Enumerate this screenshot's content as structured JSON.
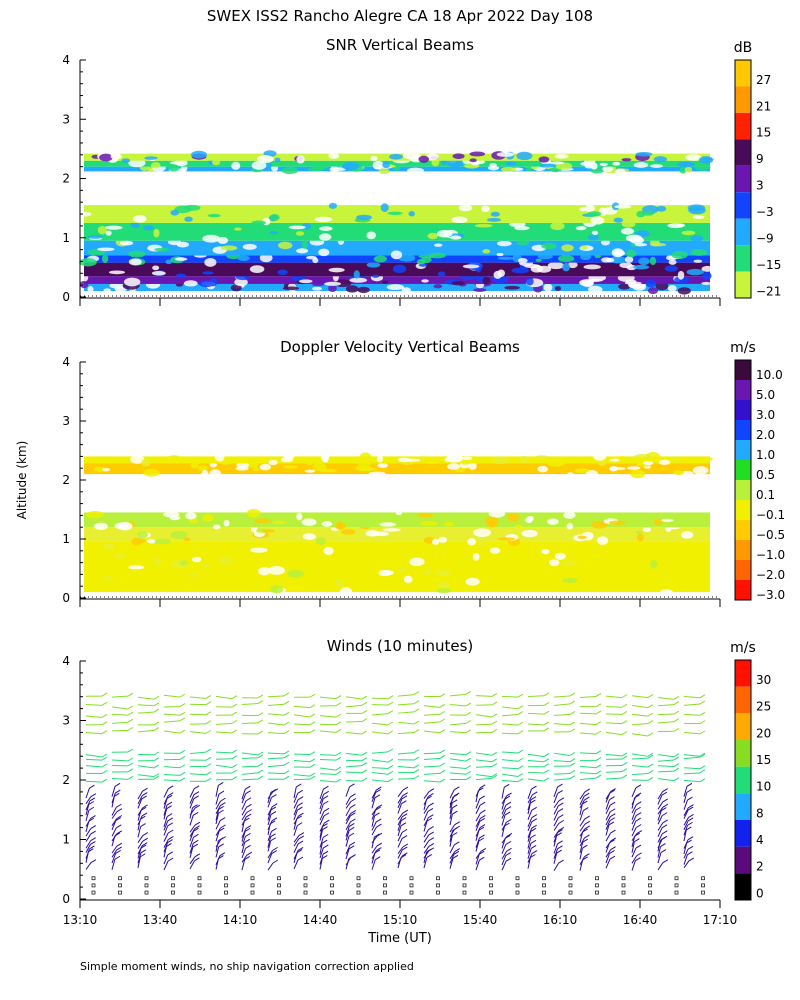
{
  "figure": {
    "title": "SWEX ISS2 Rancho Alegre CA  18 Apr 2022 Day 108",
    "ylabel": "Altitude (km)",
    "xlabel": "Time (UT)",
    "footnote": "Simple moment winds, no ship navigation correction applied",
    "x_ticks": [
      "13:10",
      "13:40",
      "14:10",
      "14:40",
      "15:10",
      "15:40",
      "16:10",
      "16:40",
      "17:10"
    ]
  },
  "chart_data": [
    {
      "type": "heatmap",
      "title": "SNR Vertical Beams",
      "ylim": [
        0,
        4
      ],
      "y_ticks": [
        "0",
        "1",
        "2",
        "3",
        "4"
      ],
      "colorbar_unit": "dB",
      "colorbar_labels": [
        "27",
        "21",
        "15",
        "9",
        "3",
        "−3",
        "−9",
        "−15",
        "−21"
      ],
      "colorbar_colors": [
        "#ffc800",
        "#ff9900",
        "#ff2200",
        "#4a0a5a",
        "#6a16b0",
        "#1144ff",
        "#22aaff",
        "#22dd77",
        "#c8f53c"
      ],
      "bands": [
        {
          "y0": 0.1,
          "y1": 0.22,
          "color": "#22aaff"
        },
        {
          "y0": 0.22,
          "y1": 0.35,
          "color": "#6a16b0"
        },
        {
          "y0": 0.35,
          "y1": 0.58,
          "color": "#4a0a5a"
        },
        {
          "y0": 0.58,
          "y1": 0.7,
          "color": "#1144ff"
        },
        {
          "y0": 0.7,
          "y1": 0.95,
          "color": "#22aaff"
        },
        {
          "y0": 0.95,
          "y1": 1.25,
          "color": "#22dd77"
        },
        {
          "y0": 1.25,
          "y1": 1.55,
          "color": "#c8f53c"
        },
        {
          "y0": 2.12,
          "y1": 2.2,
          "color": "#22aaff"
        },
        {
          "y0": 2.2,
          "y1": 2.3,
          "color": "#22dd77"
        },
        {
          "y0": 2.3,
          "y1": 2.42,
          "color": "#c8f53c"
        }
      ]
    },
    {
      "type": "heatmap",
      "title": "Doppler Velocity Vertical Beams",
      "ylim": [
        0,
        4
      ],
      "y_ticks": [
        "0",
        "1",
        "2",
        "3",
        "4"
      ],
      "colorbar_unit": "m/s",
      "colorbar_labels": [
        "10.0",
        "5.0",
        "3.0",
        "2.0",
        "1.0",
        "0.5",
        "0.1",
        "−0.1",
        "−0.5",
        "−1.0",
        "−2.0",
        "−3.0"
      ],
      "colorbar_colors": [
        "#3a0a3a",
        "#6a16b0",
        "#3311cc",
        "#1144ff",
        "#22aaff",
        "#22dd22",
        "#b8f03c",
        "#f0f000",
        "#ffcc00",
        "#ff9900",
        "#ff6600",
        "#ff1100"
      ],
      "bands": [
        {
          "y0": 0.1,
          "y1": 0.95,
          "color": "#f0f000"
        },
        {
          "y0": 0.95,
          "y1": 1.2,
          "color": "#e8ee30"
        },
        {
          "y0": 1.2,
          "y1": 1.45,
          "color": "#b8f03c"
        },
        {
          "y0": 2.1,
          "y1": 2.28,
          "color": "#ffcc00"
        },
        {
          "y0": 2.28,
          "y1": 2.4,
          "color": "#f0f000"
        }
      ]
    },
    {
      "type": "scatter",
      "title": "Winds (10 minutes)",
      "ylim": [
        0,
        4
      ],
      "y_ticks": [
        "0",
        "1",
        "2",
        "3",
        "4"
      ],
      "colorbar_unit": "m/s",
      "colorbar_labels": [
        "30",
        "25",
        "20",
        "15",
        "10",
        "8",
        "4",
        "2",
        "0"
      ],
      "colorbar_colors": [
        "#ff1100",
        "#ff6600",
        "#ffaa00",
        "#88dd22",
        "#22dd77",
        "#22aaff",
        "#1122ee",
        "#5a0a7a",
        "#000000"
      ],
      "barb_layers": [
        {
          "y0": 0.5,
          "y1": 1.7,
          "color": "#2a0a9a"
        },
        {
          "y0": 2.0,
          "y1": 2.45,
          "color": "#22dd77"
        },
        {
          "y0": 2.8,
          "y1": 3.4,
          "color": "#88dd22"
        }
      ]
    }
  ]
}
